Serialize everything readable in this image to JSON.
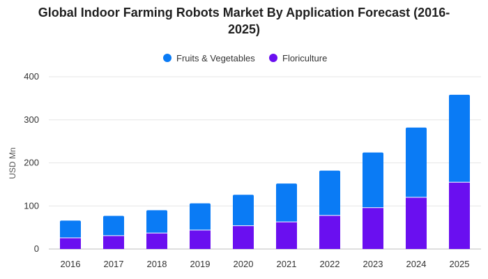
{
  "chart_data": {
    "type": "bar",
    "stacked": true,
    "title_line1": "Global Indoor Farming Robots Market By Application Forecast (2016-",
    "title_line2": "2025)",
    "ylabel": "USD Mn",
    "xlabel": "",
    "ylim": [
      0,
      400
    ],
    "yticks": [
      "0",
      "100",
      "200",
      "300",
      "400"
    ],
    "categories": [
      "2016",
      "2017",
      "2018",
      "2019",
      "2020",
      "2021",
      "2022",
      "2023",
      "2024",
      "2025"
    ],
    "series": [
      {
        "name": "Floriculture",
        "color": "#6a0ff0",
        "values": [
          26,
          31,
          37,
          44,
          54,
          63,
          78,
          96,
          120,
          155
        ]
      },
      {
        "name": "Fruits & Vegetables",
        "color": "#0a7bf5",
        "values": [
          40,
          46,
          53,
          62,
          72,
          89,
          104,
          128,
          162,
          203
        ]
      }
    ],
    "legend": {
      "placement": "top-center",
      "order": [
        "Fruits & Vegetables",
        "Floriculture"
      ]
    },
    "grid": true
  }
}
